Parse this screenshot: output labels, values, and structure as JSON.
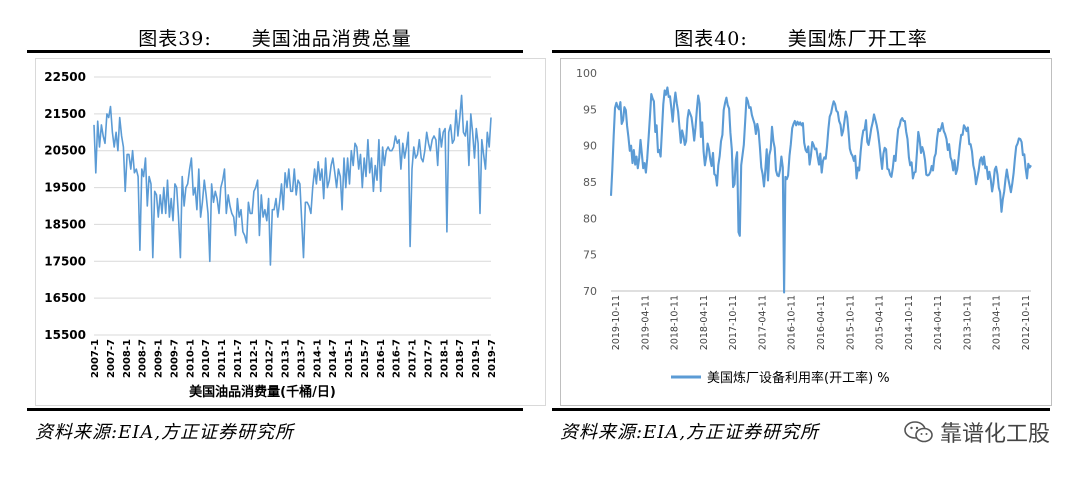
{
  "left": {
    "title_label": "图表39:",
    "title_text": "美国油品消费总量",
    "source": "资料来源:EIA,方正证券研究所"
  },
  "right": {
    "title_label": "图表40:",
    "title_text": "美国炼厂开工率",
    "source": "资料来源:EIA,方正证券研究所"
  },
  "watermark": "靠谱化工股",
  "colors": {
    "line": "#5b9bd5",
    "grid": "#d9d9d9"
  },
  "chart_data": [
    {
      "type": "line",
      "xlabel": "美国油品消费量(千桶/日)",
      "ylim": [
        15500,
        22500
      ],
      "yticks": [
        15500,
        16500,
        17500,
        18500,
        19500,
        20500,
        21500,
        22500
      ],
      "x_tick_labels": [
        "2007-1",
        "2007-7",
        "2008-1",
        "2008-7",
        "2009-1",
        "2009-7",
        "2010-1",
        "2010-7",
        "2011-1",
        "2011-7",
        "2012-1",
        "2012-7",
        "2013-1",
        "2013-7",
        "2014-1",
        "2014-7",
        "2015-1",
        "2015-7",
        "2016-1",
        "2016-7",
        "2017-1",
        "2017-7",
        "2018-1",
        "2018-7",
        "2019-1",
        "2019-7"
      ],
      "grid": true,
      "series": [
        {
          "values": [
            21200,
            19900,
            21300,
            20600,
            21200,
            20900,
            20700,
            21500,
            21400,
            21700,
            21000,
            20600,
            21000,
            20500,
            21400,
            20900,
            20600,
            19400,
            20400,
            20400,
            20000,
            20500,
            19900,
            20000,
            19800,
            17800,
            20000,
            19800,
            20300,
            19000,
            19800,
            19600,
            17600,
            19400,
            19300,
            18700,
            19300,
            18800,
            19500,
            18800,
            19700,
            18700,
            19200,
            18600,
            19600,
            19500,
            18700,
            17600,
            19800,
            19000,
            19500,
            19600,
            20000,
            20300,
            19300,
            19500,
            18900,
            20000,
            18700,
            19100,
            19700,
            19300,
            18800,
            17500,
            19600,
            19100,
            19400,
            19200,
            18800,
            19500,
            19700,
            20000,
            18800,
            19300,
            19000,
            18800,
            18700,
            18200,
            19200,
            18700,
            18900,
            18300,
            18200,
            18000,
            19100,
            18800,
            18800,
            19400,
            19500,
            19700,
            18200,
            19300,
            18700,
            18900,
            18600,
            19200,
            17400,
            18900,
            18900,
            19200,
            18700,
            19100,
            19600,
            18900,
            19900,
            19500,
            20000,
            19400,
            19400,
            20000,
            19300,
            19700,
            19600,
            18600,
            17600,
            19100,
            19100,
            19000,
            18800,
            19500,
            20000,
            19600,
            20200,
            19700,
            20000,
            19200,
            20300,
            19500,
            19700,
            20100,
            20300,
            19900,
            19500,
            20000,
            19800,
            18900,
            20300,
            19500,
            20300,
            19600,
            20500,
            20100,
            20700,
            20600,
            20000,
            20400,
            19500,
            20300,
            19800,
            20800,
            19900,
            20300,
            19400,
            20100,
            19700,
            20800,
            19400,
            20600,
            20100,
            20500,
            20600,
            20500,
            20500,
            20600,
            20900,
            20700,
            20800,
            20000,
            20700,
            20300,
            20600,
            21000,
            17900,
            20000,
            20600,
            20300,
            20400,
            20800,
            20300,
            20200,
            20500,
            21000,
            20700,
            20500,
            20800,
            20900,
            20800,
            20100,
            21100,
            20600,
            21000,
            21100,
            18300,
            21000,
            21200,
            20700,
            20800,
            21600,
            20900,
            21400,
            22000,
            21000,
            20900,
            21300,
            20100,
            21500,
            21000,
            20300,
            21100,
            20700,
            18800,
            20800,
            20400,
            20000,
            21000,
            20600,
            21400
          ]
        }
      ]
    },
    {
      "type": "line",
      "legend": "美国炼厂设备利用率(开工率) %",
      "legend_position": "bottom",
      "ylim": [
        70,
        100
      ],
      "yticks": [
        70,
        75,
        80,
        85,
        90,
        95,
        100
      ],
      "x_tick_labels": [
        "2019-10-11",
        "2019-04-11",
        "2018-10-11",
        "2018-04-11",
        "2017-10-11",
        "2017-04-11",
        "2016-10-11",
        "2016-04-11",
        "2015-10-11",
        "2015-04-11",
        "2014-10-11",
        "2014-04-11",
        "2013-10-11",
        "2013-04-11",
        "2012-10-11"
      ],
      "grid": false,
      "series": [
        {
          "name": "美国炼厂设备利用率(开工率) %",
          "values": [
            83.1,
            86.7,
            91.4,
            95.2,
            95.9,
            95.3,
            95.0,
            96.0,
            93.0,
            93.5,
            95.3,
            94.9,
            92.7,
            91.2,
            89.3,
            90.0,
            87.6,
            89.4,
            87.4,
            88.5,
            86.9,
            88.3,
            90.8,
            88.8,
            86.9,
            87.6,
            86.3,
            88.2,
            91.1,
            93.9,
            97.1,
            96.5,
            96.1,
            91.9,
            92.8,
            89.1,
            89.4,
            88.5,
            92.2,
            95.7,
            97.6,
            97.0,
            98.0,
            96.7,
            96.8,
            95.1,
            93.3,
            95.8,
            97.3,
            95.8,
            94.7,
            92.6,
            90.4,
            92.1,
            91.3,
            90.1,
            90.6,
            93.7,
            94.9,
            94.4,
            93.9,
            92.4,
            90.7,
            92.5,
            95.0,
            96.9,
            95.8,
            91.2,
            93.2,
            89.2,
            87.3,
            88.5,
            90.3,
            89.5,
            88.1,
            87.2,
            89.0,
            86.1,
            85.9,
            84.5,
            87.3,
            88.6,
            90.6,
            91.5,
            94.9,
            95.9,
            96.6,
            95.6,
            95.1,
            91.8,
            89.5,
            84.3,
            84.7,
            88.0,
            89.1,
            78.1,
            77.6,
            87.3,
            88.7,
            90.1,
            93.4,
            96.6,
            96.1,
            95.2,
            95.3,
            94.2,
            93.6,
            93.0,
            91.6,
            93.0,
            92.1,
            89.8,
            87.0,
            86.1,
            84.4,
            86.6,
            89.5,
            85.2,
            88.7,
            89.5,
            92.6,
            90.6,
            89.7,
            86.6,
            85.9,
            85.8,
            86.7,
            88.5,
            87.0,
            69.8,
            85.7,
            85.4,
            85.9,
            88.6,
            90.2,
            92.4,
            93.0,
            93.4,
            92.8,
            93.3,
            92.9,
            93.2,
            92.8,
            93.1,
            90.4,
            89.4,
            89.1,
            89.9,
            87.4,
            88.6,
            90.5,
            90.1,
            89.5,
            89.6,
            88.5,
            87.4,
            88.9,
            86.3,
            87.9,
            88.4,
            88.2,
            89.9,
            92.3,
            94.0,
            94.5,
            95.4,
            96.1,
            95.7,
            94.8,
            94.6,
            93.4,
            92.9,
            91.4,
            92.0,
            93.4,
            94.7,
            93.9,
            91.9,
            89.6,
            88.9,
            88.6,
            87.9,
            88.6,
            85.5,
            87.0,
            86.6,
            89.1,
            90.9,
            92.1,
            92.2,
            93.5,
            90.5,
            90.1,
            91.2,
            92.4,
            93.2,
            94.3,
            93.6,
            92.8,
            91.8,
            90.2,
            88.5,
            86.8,
            88.9,
            89.7,
            89.5,
            86.8,
            86.7,
            86.0,
            85.7,
            86.9,
            88.6,
            87.9,
            90.3,
            92.3,
            92.7,
            93.5,
            93.8,
            93.4,
            93.4,
            91.9,
            90.9,
            88.4,
            87.3,
            87.7,
            85.5,
            86.3,
            86.4,
            89.0,
            91.9,
            90.9,
            89.0,
            89.8,
            89.1,
            88.0,
            86.0,
            85.9,
            86.0,
            86.4,
            87.2,
            86.6,
            88.4,
            88.9,
            91.0,
            92.3,
            92.0,
            92.4,
            93.1,
            92.0,
            91.6,
            90.9,
            89.4,
            90.2,
            88.4,
            87.9,
            86.6,
            88.0,
            86.1,
            86.7,
            88.2,
            90.1,
            91.5,
            91.5,
            92.8,
            92.5,
            92.0,
            92.5,
            90.2,
            90.2,
            89.2,
            87.3,
            86.5,
            84.7,
            85.6,
            86.6,
            88.0,
            88.4,
            87.4,
            88.5,
            86.9,
            87.1,
            85.4,
            86.4,
            85.4,
            83.7,
            84.8,
            86.7,
            87.1,
            86.0,
            84.2,
            83.6,
            80.9,
            82.6,
            83.7,
            85.4,
            86.7,
            85.5,
            84.6,
            83.6,
            84.7,
            86.2,
            88.2,
            89.9,
            90.3,
            91.0,
            90.9,
            90.5,
            88.7,
            88.8,
            86.9,
            85.5,
            87.5,
            87.0,
            87.3
          ]
        }
      ]
    }
  ]
}
